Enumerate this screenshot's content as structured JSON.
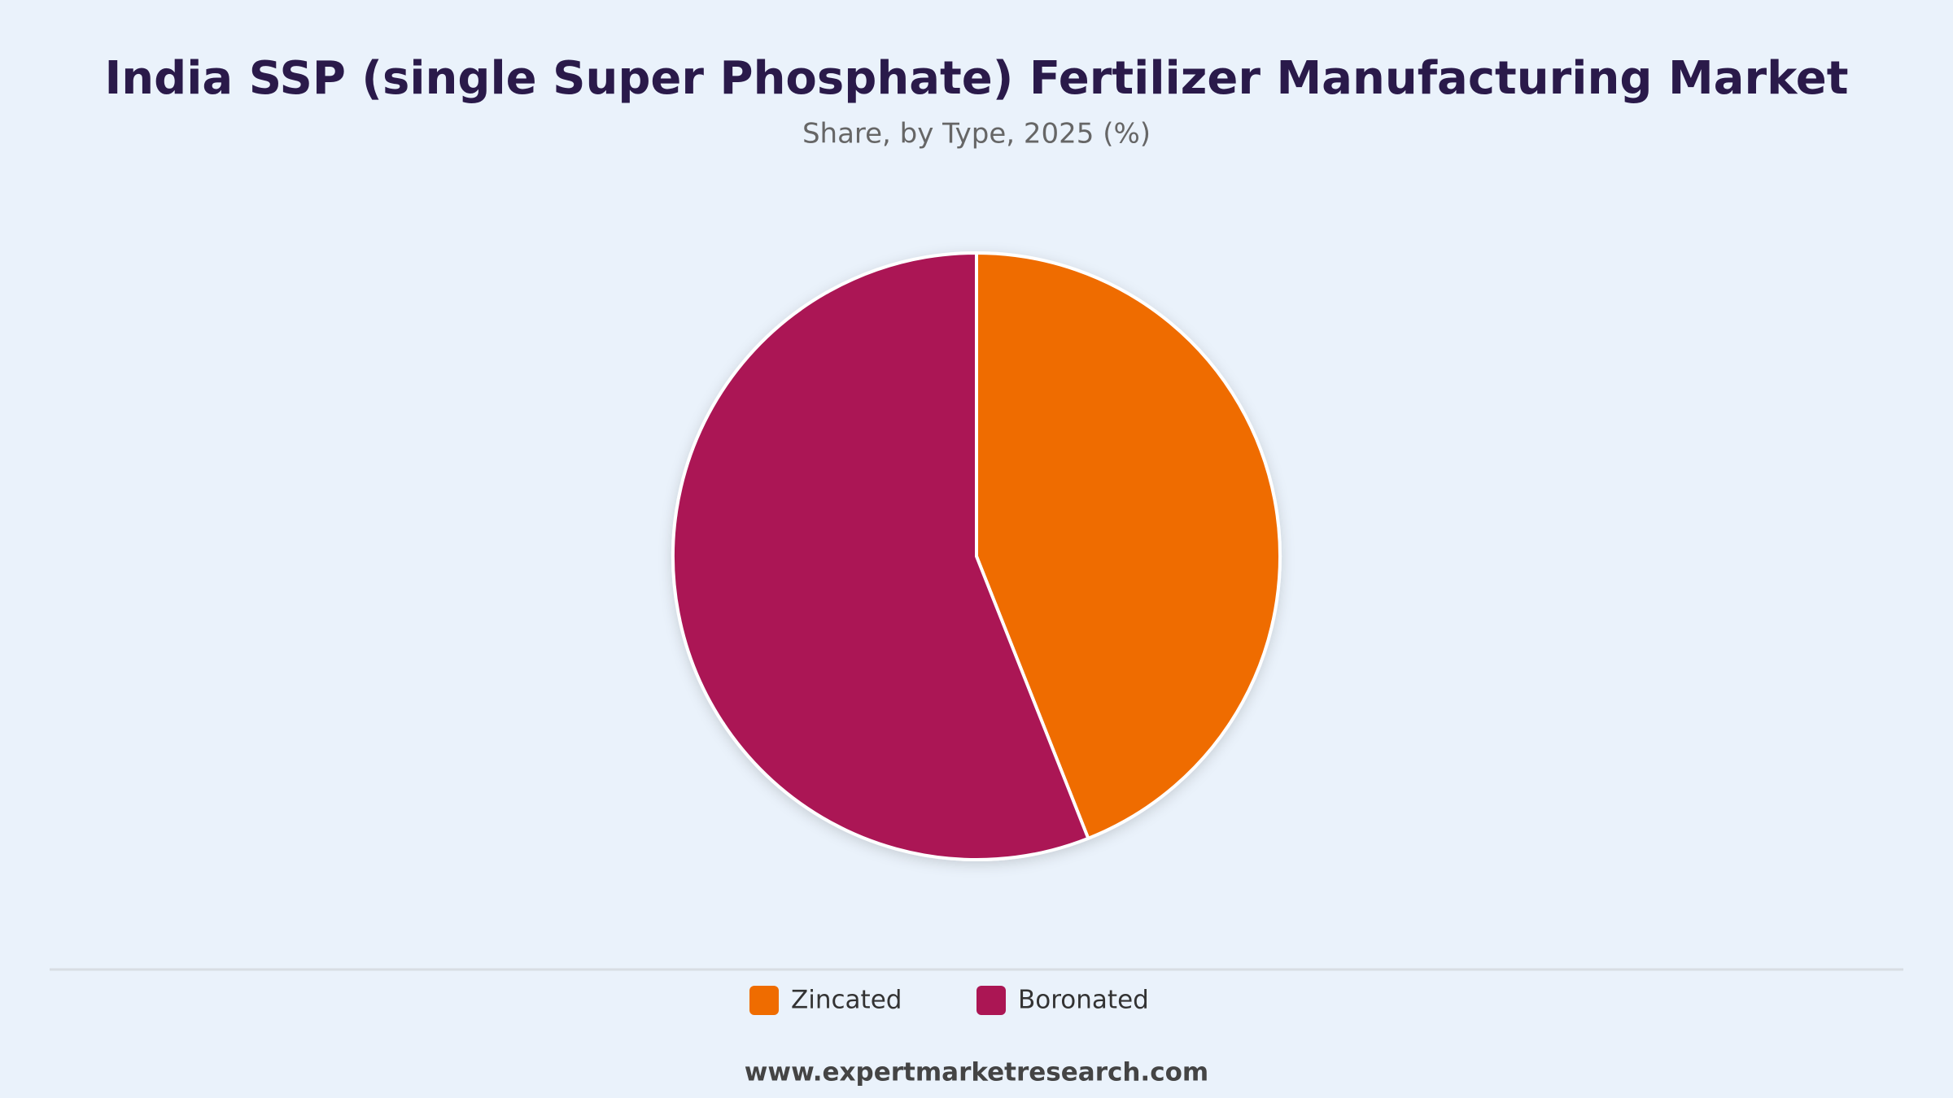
{
  "chart_data": {
    "type": "pie",
    "title": "India SSP (single Super Phosphate) Fertilizer Manufacturing Market",
    "subtitle": "Share, by Type, 2025 (%)",
    "categories": [
      "Zincated",
      "Boronated"
    ],
    "values": [
      44,
      56
    ],
    "colors": [
      "#ef6c00",
      "#ab1654"
    ],
    "source": "www.expertmarketresearch.com"
  }
}
